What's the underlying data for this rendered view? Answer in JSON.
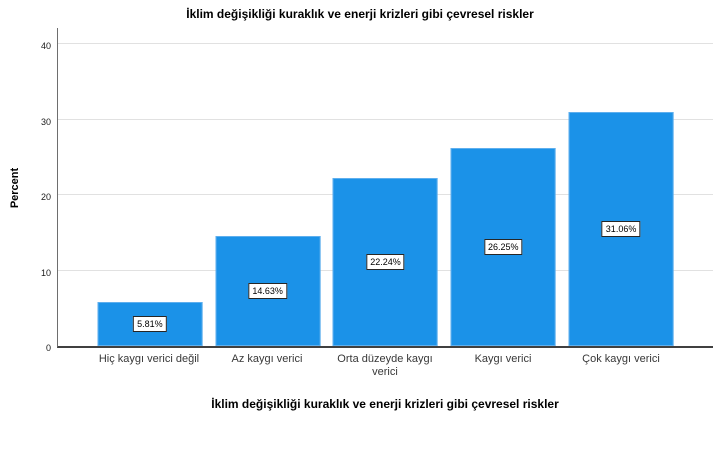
{
  "chart_data": {
    "type": "bar",
    "title": "İklim değişikliği kuraklık ve enerji krizleri gibi çevresel riskler",
    "xlabel": "İklim değişikliği kuraklık ve enerji krizleri gibi çevresel riskler",
    "ylabel": "Percent",
    "categories": [
      "Hiç kaygı verici değil",
      "Az kaygı verici",
      "Orta düzeyde kaygı verici",
      "Kaygı verici",
      "Çok kaygı verici"
    ],
    "values": [
      5.81,
      14.63,
      22.24,
      26.25,
      31.06
    ],
    "value_labels": [
      "5.81%",
      "14.63%",
      "22.24%",
      "26.25%",
      "31.06%"
    ],
    "yticks": [
      0,
      10,
      20,
      30,
      40
    ],
    "ylim": [
      0,
      42
    ],
    "grid": "horizontal-gridlines",
    "legend": "none",
    "colors": {
      "bar_fill": "#1b92e8",
      "bar_border": "#5eafee",
      "gridline": "#e1e1e1",
      "axis_line": "#6e6e6e",
      "baseline": "#404040",
      "label_box_bg": "#ffffff",
      "label_box_border": "#262626",
      "label_text": "#000000"
    }
  }
}
